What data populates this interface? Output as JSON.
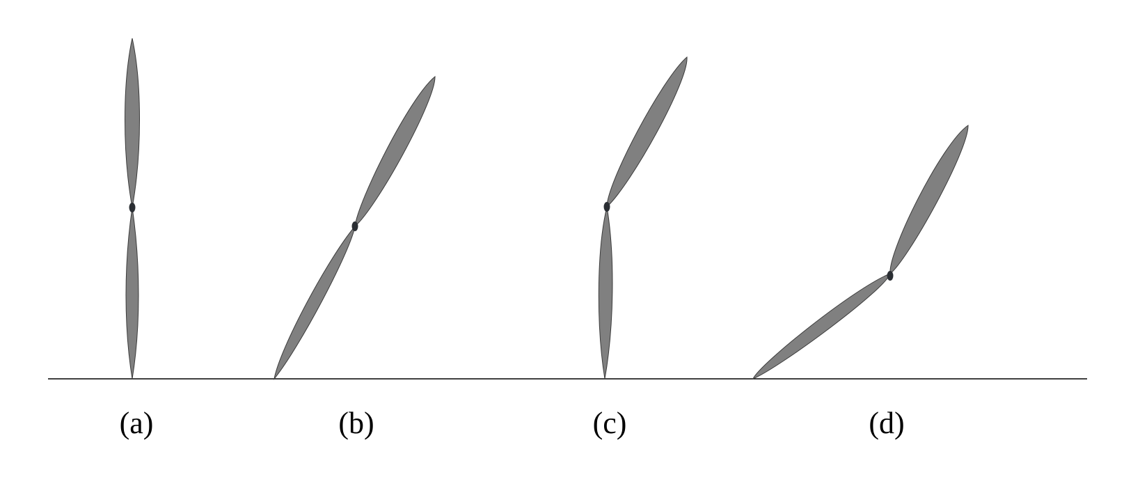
{
  "colors": {
    "background": "#ffffff",
    "segment_fill": "#808080",
    "segment_stroke": "#3a3a3a",
    "joint_fill": "#2a2e33",
    "ground_line": "#000000"
  },
  "panels": [
    {
      "id": "a",
      "label": "(a)"
    },
    {
      "id": "b",
      "label": "(b)"
    },
    {
      "id": "c",
      "label": "(c)"
    },
    {
      "id": "d",
      "label": "(d)"
    }
  ]
}
